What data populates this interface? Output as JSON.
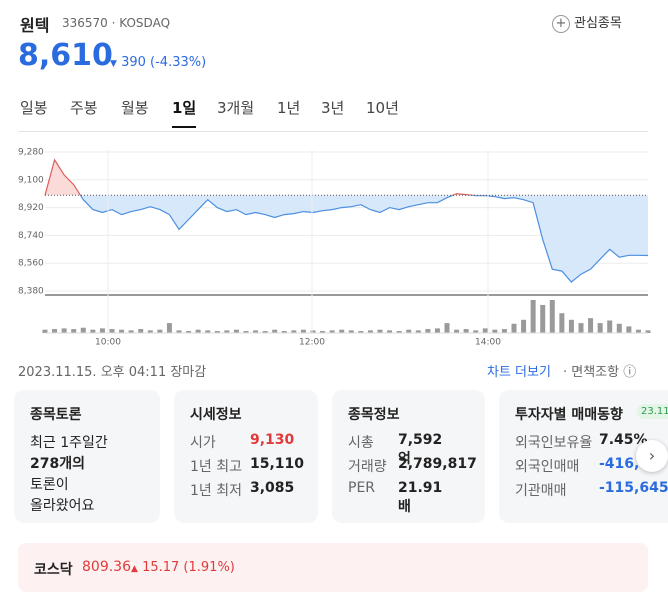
{
  "header": {
    "name": "원텍",
    "code": "336570",
    "market": "KOSDAQ",
    "watch_button": "관심종목"
  },
  "quote": {
    "price": "8,610",
    "change": "390",
    "change_pct": "(-4.33%)"
  },
  "tabs": [
    "일봉",
    "주봉",
    "월봉",
    "1일",
    "3개월",
    "1년",
    "3년",
    "10년"
  ],
  "active_tab": 3,
  "chart": {
    "type": "line",
    "base": 9000,
    "values": [
      9000,
      9229,
      9132,
      9068,
      8971,
      8907,
      8888,
      8907,
      8875,
      8894,
      8907,
      8926,
      8907,
      8875,
      8779,
      8843,
      8907,
      8971,
      8920,
      8894,
      8907,
      8875,
      8888,
      8875,
      8856,
      8875,
      8881,
      8894,
      8888,
      8900,
      8907,
      8920,
      8926,
      8939,
      8907,
      8888,
      8920,
      8907,
      8926,
      8939,
      8952,
      8952,
      8984,
      9010,
      9004,
      8997,
      8997,
      8991,
      8978,
      8984,
      8971,
      8952,
      8714,
      8521,
      8509,
      8438,
      8489,
      8521,
      8586,
      8650,
      8599,
      8611,
      8611,
      8610
    ],
    "volume": [
      10,
      12,
      14,
      12,
      16,
      10,
      14,
      12,
      10,
      8,
      12,
      8,
      10,
      30,
      8,
      6,
      10,
      8,
      6,
      8,
      10,
      6,
      8,
      6,
      10,
      6,
      8,
      10,
      8,
      6,
      8,
      10,
      8,
      6,
      8,
      10,
      8,
      6,
      10,
      8,
      12,
      14,
      30,
      10,
      12,
      8,
      14,
      10,
      12,
      28,
      40,
      100,
      85,
      100,
      60,
      40,
      30,
      45,
      30,
      38,
      28,
      20,
      10,
      8
    ],
    "vlim": [
      0,
      100
    ],
    "ylim": [
      8380,
      9280
    ],
    "yticks": [
      {
        "value": 9280,
        "label": "9,280"
      },
      {
        "value": 9100,
        "label": "9,100"
      },
      {
        "value": 8920,
        "label": "8,920"
      },
      {
        "value": 8740,
        "label": "8,740"
      },
      {
        "value": 8560,
        "label": "8,560"
      },
      {
        "value": 8380,
        "label": "8,380"
      }
    ],
    "time_labels": [
      "10:00",
      "12:00",
      "14:00"
    ]
  },
  "timestamp": "2023.11.15. 오후 04:11 장마감",
  "links": [
    "차트 더보기",
    "면책조항"
  ],
  "cards": [
    {
      "title": "종목토론",
      "lines": [
        "최근 1주일간",
        "278개의",
        "토론이",
        "올라왔어요"
      ]
    },
    {
      "title": "시세정보",
      "rows": [
        [
          "시가",
          "9,130"
        ],
        [
          "1년 최고",
          "15,110"
        ],
        [
          "1년 최저",
          "3,085"
        ]
      ]
    },
    {
      "title": "종목정보",
      "rows": [
        [
          "시총",
          "7,592억"
        ],
        [
          "거래량",
          "2,789,817"
        ],
        [
          "PER",
          "21.91배"
        ]
      ]
    },
    {
      "title": "투자자별 매매동향",
      "badge": "23.11.",
      "rows": [
        [
          "외국인보유율",
          "7.45%"
        ],
        [
          "외국인매매",
          "-416,"
        ],
        [
          "기관매매",
          "-115,645"
        ]
      ]
    }
  ],
  "index": {
    "name": "코스닥",
    "value": "809.36",
    "change": "15.17",
    "change_pct": "(1.91%)"
  }
}
